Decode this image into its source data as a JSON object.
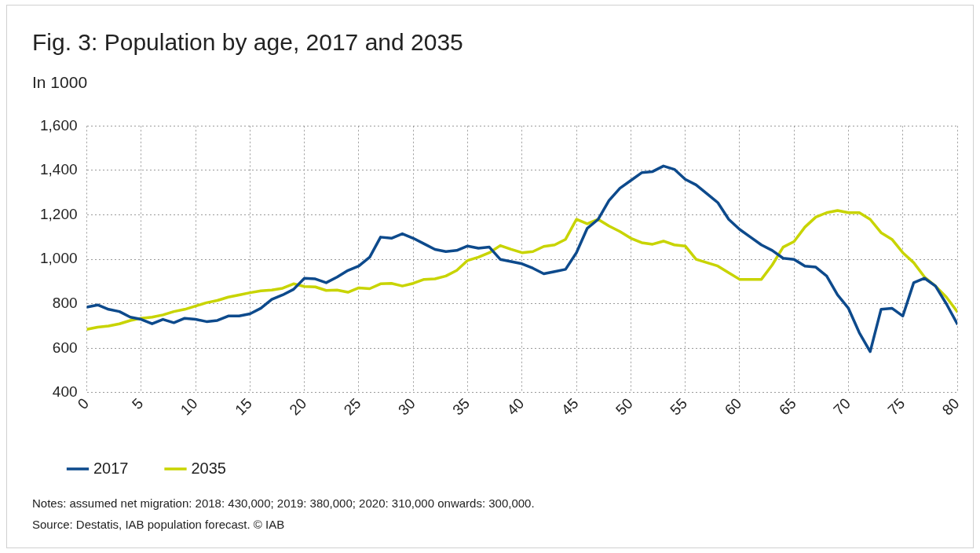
{
  "chart_data": {
    "type": "line",
    "title": "Fig. 3: Population by age, 2017 and 2035",
    "subtitle": "In 1000",
    "x": [
      0,
      1,
      2,
      3,
      4,
      5,
      6,
      7,
      8,
      9,
      10,
      11,
      12,
      13,
      14,
      15,
      16,
      17,
      18,
      19,
      20,
      21,
      22,
      23,
      24,
      25,
      26,
      27,
      28,
      29,
      30,
      31,
      32,
      33,
      34,
      35,
      36,
      37,
      38,
      39,
      40,
      41,
      42,
      43,
      44,
      45,
      46,
      47,
      48,
      49,
      50,
      51,
      52,
      53,
      54,
      55,
      56,
      57,
      58,
      59,
      60,
      61,
      62,
      63,
      64,
      65,
      66,
      67,
      68,
      69,
      70,
      71,
      72,
      73,
      74,
      75,
      76,
      77,
      78,
      79,
      80
    ],
    "series": [
      {
        "name": "2017",
        "color": "#0d4a8c",
        "values": [
          785,
          795,
          775,
          765,
          740,
          730,
          710,
          730,
          715,
          735,
          730,
          720,
          725,
          745,
          745,
          755,
          780,
          820,
          840,
          865,
          915,
          912,
          895,
          920,
          950,
          970,
          1010,
          1100,
          1095,
          1115,
          1095,
          1070,
          1045,
          1035,
          1040,
          1060,
          1050,
          1055,
          1000,
          990,
          980,
          960,
          935,
          945,
          955,
          1030,
          1140,
          1180,
          1265,
          1320,
          1355,
          1390,
          1395,
          1420,
          1405,
          1360,
          1335,
          1295,
          1255,
          1180,
          1135,
          1100,
          1065,
          1040,
          1005,
          1000,
          970,
          965,
          925,
          840,
          780,
          670,
          585,
          775,
          780,
          745,
          895,
          915,
          880,
          800,
          710
        ]
      },
      {
        "name": "2035",
        "color": "#c8d400",
        "values": [
          685,
          695,
          700,
          710,
          725,
          735,
          740,
          750,
          765,
          775,
          790,
          805,
          815,
          830,
          840,
          850,
          858,
          862,
          870,
          890,
          878,
          876,
          860,
          862,
          852,
          872,
          868,
          890,
          892,
          880,
          892,
          910,
          912,
          925,
          950,
          995,
          1010,
          1030,
          1062,
          1045,
          1030,
          1035,
          1058,
          1065,
          1090,
          1180,
          1160,
          1180,
          1150,
          1125,
          1095,
          1075,
          1068,
          1082,
          1065,
          1060,
          1000,
          985,
          970,
          940,
          910,
          910,
          910,
          975,
          1055,
          1080,
          1145,
          1190,
          1210,
          1220,
          1210,
          1210,
          1180,
          1120,
          1090,
          1030,
          985,
          920,
          880,
          830,
          765
        ]
      }
    ],
    "xlim": [
      0,
      80
    ],
    "xticks": [
      0,
      5,
      10,
      15,
      20,
      25,
      30,
      35,
      40,
      45,
      50,
      55,
      60,
      65,
      70,
      75,
      80
    ],
    "ylim": [
      400,
      1600
    ],
    "yticks": [
      {
        "value": 400,
        "label": "400"
      },
      {
        "value": 600,
        "label": "600"
      },
      {
        "value": 800,
        "label": "800"
      },
      {
        "value": 1000,
        "label": "1,000"
      },
      {
        "value": 1200,
        "label": "1,200"
      },
      {
        "value": 1400,
        "label": "1,400"
      },
      {
        "value": 1600,
        "label": "1,600"
      }
    ],
    "grid": true,
    "legend": "bottom left",
    "marker": "none",
    "line_style": "solid",
    "annotations": [
      "Notes: assumed net migration: 2018: 430,000; 2019: 380,000;  2020: 310,000 onwards: 300,000.",
      "Source: Destatis, IAB population forecast. © IAB"
    ]
  }
}
